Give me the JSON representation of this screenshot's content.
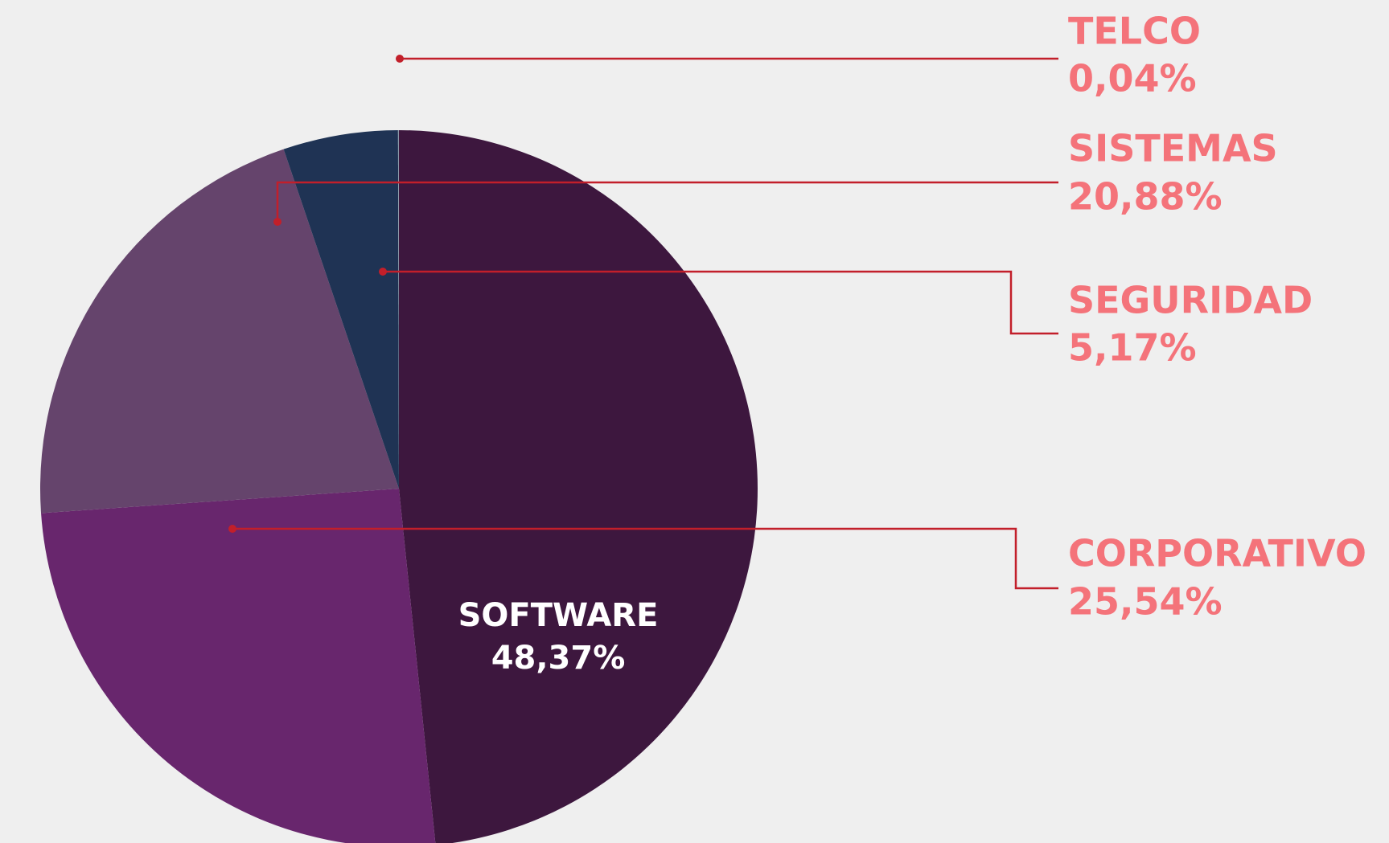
{
  "chart_data": {
    "type": "pie",
    "categories": [
      "SOFTWARE",
      "CORPORATIVO",
      "SISTEMAS",
      "SEGURIDAD",
      "TELCO"
    ],
    "values": [
      48.37,
      25.54,
      20.88,
      5.17,
      0.04
    ],
    "value_labels": [
      "48,37%",
      "25,54%",
      "20,88%",
      "5,17%",
      "0,04%"
    ],
    "colors": [
      "#3d173e",
      "#68266d",
      "#65446c",
      "#1f3354",
      "#8a98a8"
    ]
  }
}
